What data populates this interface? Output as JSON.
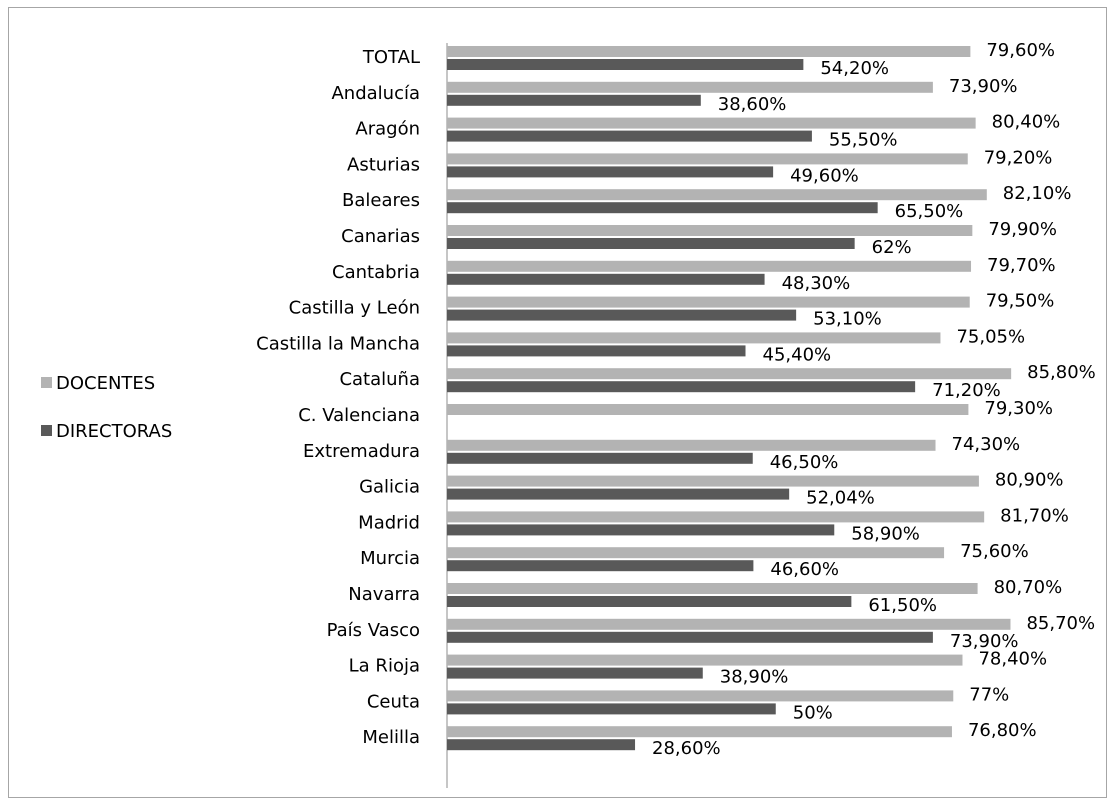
{
  "chart_data": {
    "type": "bar",
    "orientation": "horizontal",
    "categories": [
      "TOTAL",
      "Andalucía",
      "Aragón",
      "Asturias",
      "Baleares",
      "Canarias",
      "Cantabria",
      "Castilla y León",
      "Castilla la Mancha",
      "Cataluña",
      "C. Valenciana",
      "Extremadura",
      "Galicia",
      "Madrid",
      "Murcia",
      "Navarra",
      "País Vasco",
      "La Rioja",
      "Ceuta",
      "Melilla"
    ],
    "series": [
      {
        "name": "DOCENTES",
        "color": "#b3b3b3",
        "values": [
          79.6,
          73.9,
          80.4,
          79.2,
          82.1,
          79.9,
          79.7,
          79.5,
          75.05,
          85.8,
          79.3,
          74.3,
          80.9,
          81.7,
          75.6,
          80.7,
          85.7,
          78.4,
          77,
          76.8
        ],
        "labels": [
          "79,60%",
          "73,90%",
          "80,40%",
          "79,20%",
          "82,10%",
          "79,90%",
          "79,70%",
          "79,50%",
          "75,05%",
          "85,80%",
          "79,30%",
          "74,30%",
          "80,90%",
          "81,70%",
          "75,60%",
          "80,70%",
          "85,70%",
          "78,40%",
          "77%",
          "76,80%"
        ]
      },
      {
        "name": "DIRECTORAS",
        "color": "#595959",
        "values": [
          54.2,
          38.6,
          55.5,
          49.6,
          65.5,
          62,
          48.3,
          53.1,
          45.4,
          71.2,
          null,
          46.5,
          52.04,
          58.9,
          46.6,
          61.5,
          73.9,
          38.9,
          50,
          28.6
        ],
        "labels": [
          "54,20%",
          "38,60%",
          "55,50%",
          "49,60%",
          "65,50%",
          "62%",
          "48,30%",
          "53,10%",
          "45,40%",
          "71,20%",
          "",
          "46,50%",
          "52,04%",
          "58,90%",
          "46,60%",
          "61,50%",
          "73,90%",
          "38,90%",
          "50%",
          "28,60%"
        ]
      }
    ],
    "xlim": [
      0,
      100
    ],
    "grid": false,
    "legend": "left",
    "title": "",
    "xlabel": "",
    "ylabel": ""
  }
}
